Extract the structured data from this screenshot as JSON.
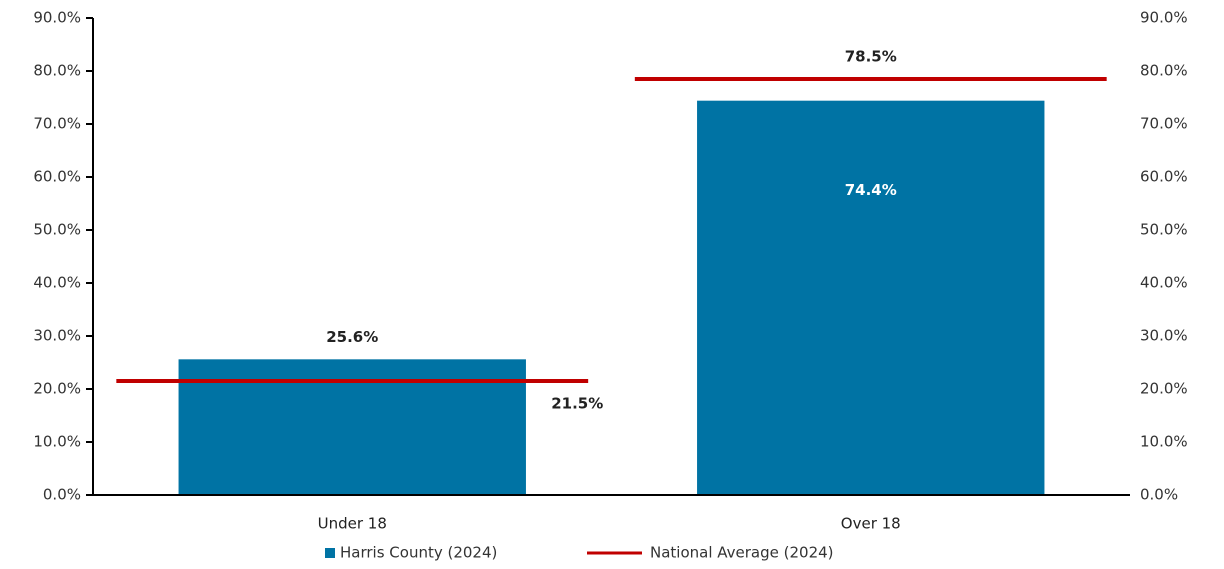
{
  "chart_data": {
    "type": "bar",
    "categories": [
      "Under 18",
      "Over 18"
    ],
    "series": [
      {
        "name": "Harris County (2024)",
        "color": "#0073a4",
        "values": [
          25.6,
          74.4
        ],
        "value_labels": [
          "25.6%",
          "74.4%"
        ]
      },
      {
        "name": "National Average (2024)",
        "color": "#c00000",
        "values": [
          21.5,
          78.5
        ],
        "value_labels": [
          "21.5%",
          "78.5%"
        ],
        "axis": "y2"
      }
    ],
    "ylim": [
      0,
      90
    ],
    "yticks": [
      {
        "value": 0,
        "label": "0.0%"
      },
      {
        "value": 10,
        "label": "10.0%"
      },
      {
        "value": 20,
        "label": "20.0%"
      },
      {
        "value": 30,
        "label": "30.0%"
      },
      {
        "value": 40,
        "label": "40.0%"
      },
      {
        "value": 50,
        "label": "50.0%"
      },
      {
        "value": 60,
        "label": "60.0%"
      },
      {
        "value": 70,
        "label": "70.0%"
      },
      {
        "value": 80,
        "label": "80.0%"
      },
      {
        "value": 90,
        "label": "90.0%"
      }
    ],
    "y2lim": [
      0,
      90
    ],
    "y2ticks": [
      {
        "value": 0,
        "label": "0.0%"
      },
      {
        "value": 10,
        "label": "10.0%"
      },
      {
        "value": 20,
        "label": "20.0%"
      },
      {
        "value": 30,
        "label": "30.0%"
      },
      {
        "value": 40,
        "label": "40.0%"
      },
      {
        "value": 50,
        "label": "50.0%"
      },
      {
        "value": 60,
        "label": "60.0%"
      },
      {
        "value": 70,
        "label": "70.0%"
      },
      {
        "value": 80,
        "label": "80.0%"
      },
      {
        "value": 90,
        "label": "90.0%"
      }
    ],
    "grid": false,
    "legend": "bottom"
  }
}
